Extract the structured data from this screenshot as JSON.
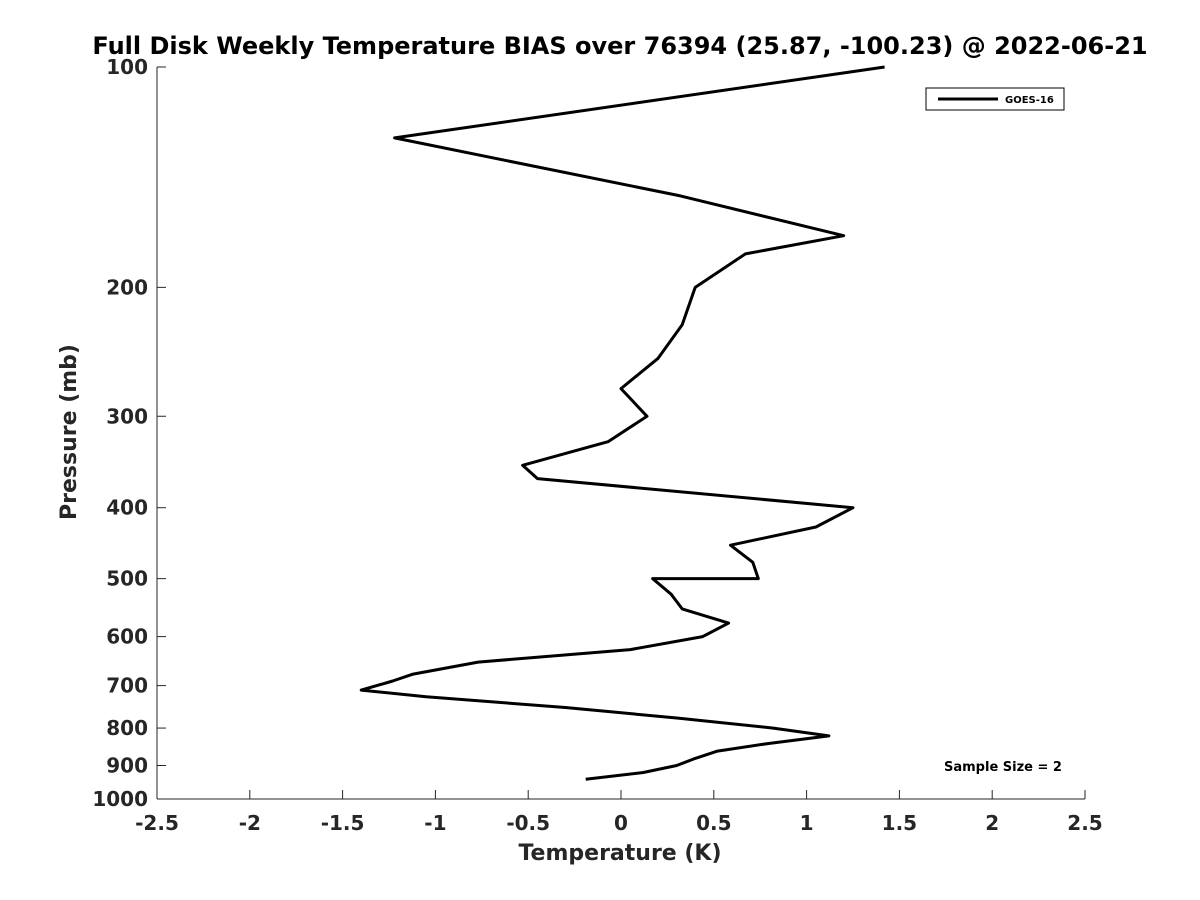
{
  "chart_data": {
    "type": "line",
    "title": "Full Disk Weekly Temperature BIAS over 76394 (25.87, -100.23) @ 2022-06-21",
    "xlabel": "Temperature (K)",
    "ylabel": "Pressure (mb)",
    "xlim": [
      -2.5,
      2.5
    ],
    "ylim": [
      100,
      1000
    ],
    "y_scale": "log",
    "y_reversed": true,
    "grid": false,
    "x_ticks": [
      -2.5,
      -2,
      -1.5,
      -1,
      -0.5,
      0,
      0.5,
      1,
      1.5,
      2,
      2.5
    ],
    "x_tick_labels": [
      "-2.5",
      "-2",
      "-1.5",
      "-1",
      "-0.5",
      "0",
      "0.5",
      "1",
      "1.5",
      "2",
      "2.5"
    ],
    "y_ticks": [
      100,
      200,
      300,
      400,
      500,
      600,
      700,
      800,
      900,
      1000
    ],
    "y_tick_labels": [
      "100",
      "200",
      "300",
      "400",
      "500",
      "600",
      "700",
      "800",
      "900",
      "1000"
    ],
    "legend_position": "top-right",
    "series": [
      {
        "name": "GOES-16",
        "color": "#000000",
        "x": [
          1.42,
          -1.22,
          0.32,
          1.2,
          0.67,
          0.4,
          0.33,
          0.2,
          0.0,
          0.14,
          -0.07,
          -0.53,
          -0.45,
          1.25,
          1.05,
          0.59,
          0.71,
          0.74,
          0.17,
          0.27,
          0.33,
          0.58,
          0.44,
          0.05,
          -0.77,
          -1.12,
          -1.23,
          -1.4,
          -1.05,
          -0.3,
          0.3,
          0.82,
          1.12,
          0.79,
          0.52,
          0.4,
          0.3,
          0.12,
          -0.19
        ],
        "y": [
          100,
          125,
          150,
          170,
          180,
          200,
          225,
          250,
          275,
          300,
          325,
          350,
          365,
          400,
          425,
          450,
          475,
          500,
          500,
          525,
          550,
          575,
          600,
          625,
          650,
          675,
          690,
          710,
          725,
          750,
          775,
          800,
          820,
          840,
          860,
          880,
          900,
          920,
          940
        ]
      }
    ],
    "annotation": "Sample Size = 2"
  }
}
